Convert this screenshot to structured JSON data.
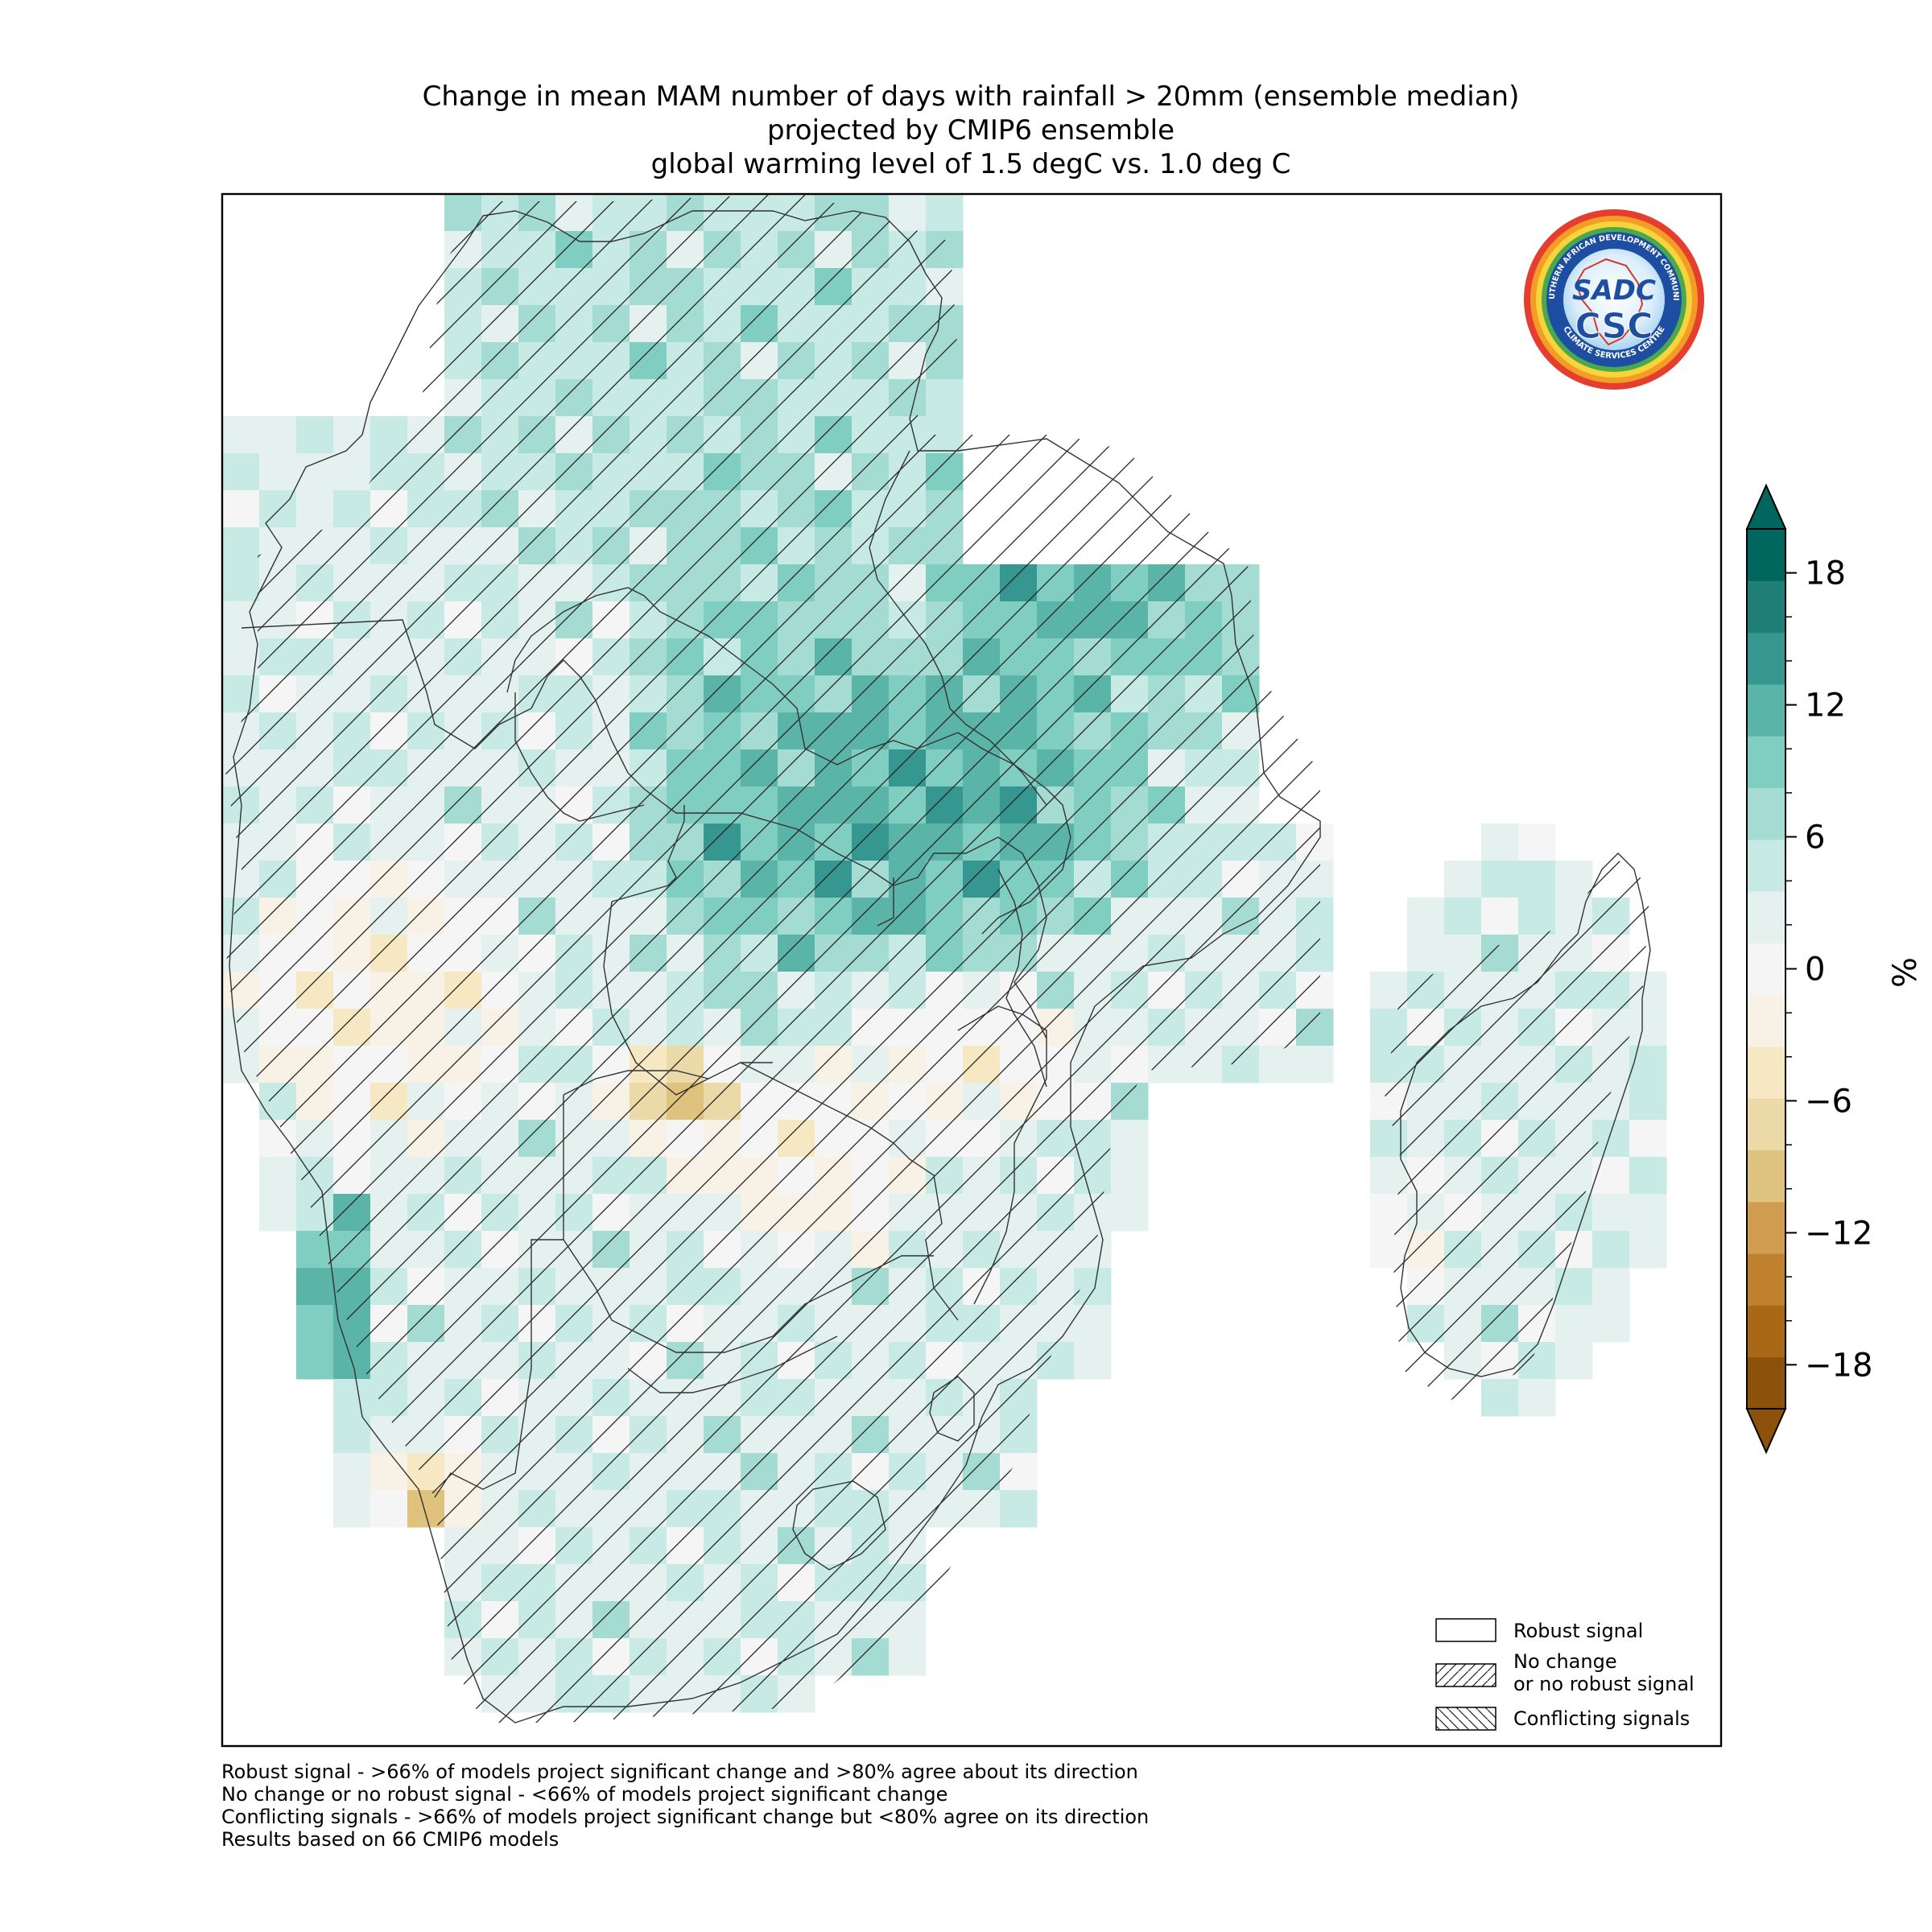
{
  "title": {
    "line1": "Change in mean MAM number of days with rainfall > 20mm (ensemble median)",
    "line2": "projected by CMIP6 ensemble",
    "line3": "global warming level of 1.5 degC vs. 1.0 deg C"
  },
  "logo": {
    "ring_text_top": "SOUTHERN AFRICAN DEVELOPMENT COMMUNITY",
    "ring_text_bottom": "CLIMATE SERVICES CENTRE",
    "emblem_text": "SADC",
    "emblem_sub": "CSC"
  },
  "colorbar": {
    "unit_label": "%",
    "ticks": [
      {
        "value": 18,
        "label": "18"
      },
      {
        "value": 12,
        "label": "12"
      },
      {
        "value": 6,
        "label": "6"
      },
      {
        "value": 0,
        "label": "0"
      },
      {
        "value": -6,
        "label": "−6"
      },
      {
        "value": -12,
        "label": "−12"
      },
      {
        "value": -18,
        "label": "−18"
      }
    ],
    "min": -20,
    "max": 20,
    "extend": "both",
    "colors_bottom_to_top": [
      "#8c510a",
      "#a86816",
      "#bf812d",
      "#d09c4f",
      "#dfc27d",
      "#ecd9a8",
      "#f6e8c3",
      "#f7f1e6",
      "#f5f5f5",
      "#e5f1ef",
      "#c7eae5",
      "#a4dcd3",
      "#80cdc1",
      "#5ab4a7",
      "#35978f",
      "#1f7f76",
      "#01665e"
    ]
  },
  "legend": {
    "items": [
      {
        "label": "Robust signal"
      },
      {
        "label": "No change\nor no robust signal"
      },
      {
        "label": "Conflicting signals"
      }
    ]
  },
  "footnotes": [
    "Robust signal - >66% of models project significant change and >80% agree about its direction",
    "No change or no robust signal - <66% of models project significant change",
    "Conflicting signals - >66% of models project significant change but <80% agree on its direction",
    "Results based on 66 CMIP6 models"
  ],
  "map_colors": {
    "frame": "#000000",
    "border": "#333333",
    "hatch": "#222222"
  }
}
